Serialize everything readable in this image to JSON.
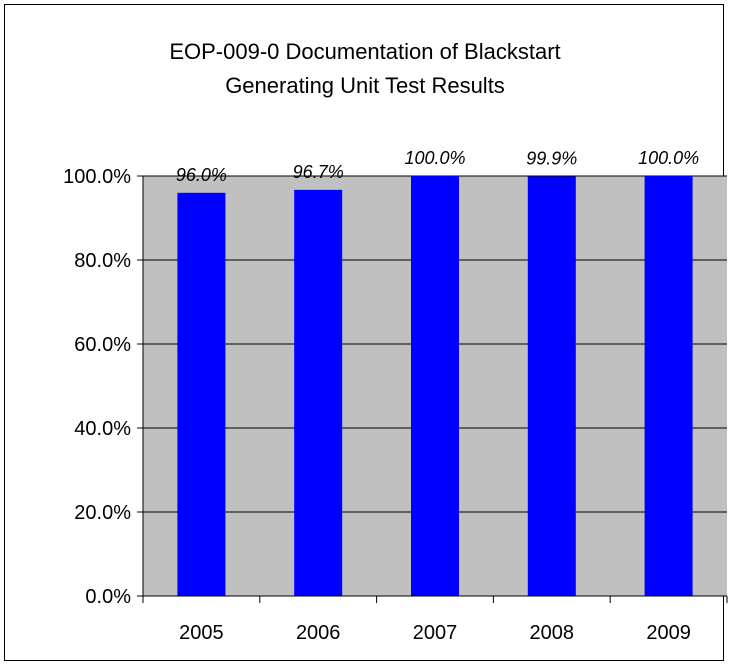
{
  "chart_data": {
    "type": "bar",
    "title": {
      "line1": "EOP-009-0 Documentation of Blackstart",
      "line2": "Generating Unit Test Results"
    },
    "categories": [
      "2005",
      "2006",
      "2007",
      "2008",
      "2009"
    ],
    "values": [
      96.0,
      96.7,
      100.0,
      99.9,
      100.0
    ],
    "data_labels": [
      "96.0%",
      "96.7%",
      "100.0%",
      "99.9%",
      "100.0%"
    ],
    "y_ticks": [
      0,
      20,
      40,
      60,
      80,
      100
    ],
    "y_tick_labels": [
      "0.0%",
      "20.0%",
      "40.0%",
      "60.0%",
      "80.0%",
      "100.0%"
    ],
    "ylim": [
      0,
      100
    ],
    "xlabel": "",
    "ylabel": "",
    "grid": true,
    "legend": "none",
    "colors": {
      "bar": "#0000ff",
      "plot_background": "#c0c0c0",
      "gridline": "#000000"
    }
  }
}
